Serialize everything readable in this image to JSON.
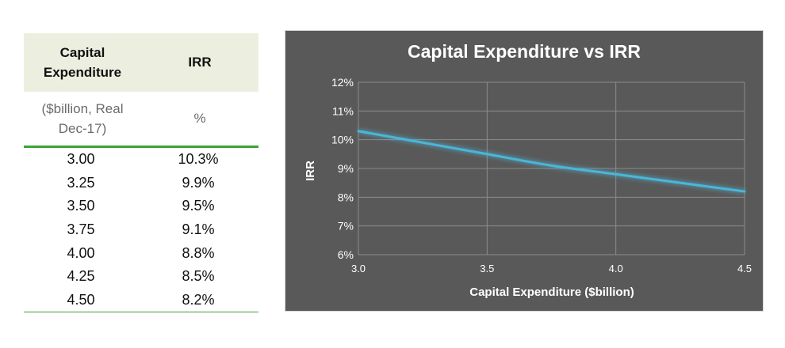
{
  "table": {
    "header": {
      "col1_line1": "Capital",
      "col1_line2": "Expenditure",
      "col2": "IRR"
    },
    "units": {
      "col1_line1": "($billion, Real",
      "col1_line2": "Dec-17)",
      "col2": "%"
    },
    "rows": [
      {
        "capex": "3.00",
        "irr": "10.3%"
      },
      {
        "capex": "3.25",
        "irr": "9.9%"
      },
      {
        "capex": "3.50",
        "irr": "9.5%"
      },
      {
        "capex": "3.75",
        "irr": "9.1%"
      },
      {
        "capex": "4.00",
        "irr": "8.8%"
      },
      {
        "capex": "4.25",
        "irr": "8.5%"
      },
      {
        "capex": "4.50",
        "irr": "8.2%"
      }
    ]
  },
  "colors": {
    "chart_background": "#595959",
    "gridline": "#8c8c8c",
    "series_line": "#4bb6d8",
    "table_header_background": "#ecefdf",
    "table_rule": "#3aa335"
  },
  "chart_data": {
    "type": "line",
    "title": "Capital Expenditure vs IRR",
    "xlabel": "Capital Expenditure ($billion)",
    "ylabel": "IRR",
    "xlim": [
      3.0,
      4.5
    ],
    "ylim": [
      6,
      12
    ],
    "x_ticks": [
      3.0,
      3.5,
      4.0,
      4.5
    ],
    "x_tick_labels": [
      "3.0",
      "3.5",
      "4.0",
      "4.5"
    ],
    "y_ticks": [
      6,
      7,
      8,
      9,
      10,
      11,
      12
    ],
    "y_tick_labels": [
      "6%",
      "7%",
      "8%",
      "9%",
      "10%",
      "11%",
      "12%"
    ],
    "grid": true,
    "series": [
      {
        "name": "IRR",
        "x": [
          3.0,
          3.25,
          3.5,
          3.75,
          4.0,
          4.25,
          4.5
        ],
        "values": [
          10.3,
          9.9,
          9.5,
          9.1,
          8.8,
          8.5,
          8.2
        ]
      }
    ]
  }
}
